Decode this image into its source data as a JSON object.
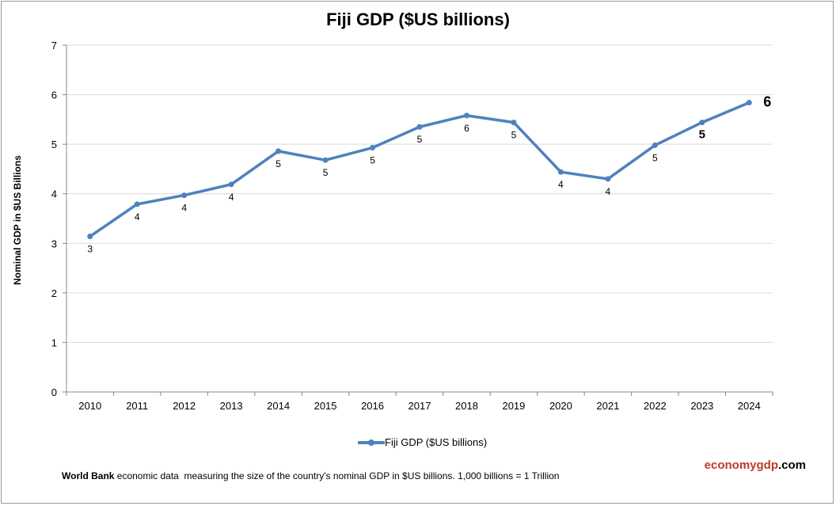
{
  "chart_data": {
    "type": "line",
    "title": "Fiji GDP ($US billions)",
    "xlabel": "",
    "ylabel": "Nominal GDP in $US  Billions",
    "ylim": [
      0,
      7
    ],
    "yticks": [
      "0",
      "1",
      "2",
      "3",
      "4",
      "5",
      "6",
      "7"
    ],
    "grid": true,
    "legend_position": "bottom",
    "categories": [
      "2010",
      "2011",
      "2012",
      "2013",
      "2014",
      "2015",
      "2016",
      "2017",
      "2018",
      "2019",
      "2020",
      "2021",
      "2022",
      "2023",
      "2024"
    ],
    "series": [
      {
        "name": "Fiji GDP ($US billions)",
        "color": "#4f81bd",
        "values": [
          3.14,
          3.79,
          3.97,
          4.19,
          4.86,
          4.68,
          4.93,
          5.35,
          5.58,
          5.44,
          4.44,
          4.3,
          4.98,
          5.44,
          5.84
        ],
        "data_labels": [
          "3",
          "4",
          "4",
          "4",
          "5",
          "5",
          "5",
          "5",
          "6",
          "5",
          "4",
          "4",
          "5",
          "5",
          "6"
        ]
      }
    ]
  },
  "footer": {
    "source_bold": "World Bank",
    "text": " economic data  measuring the size of the country's nominal GDP in $US billions. 1,000 billions = 1 Trillion"
  },
  "brand": {
    "part1": "economygdp",
    "part2": ".com",
    "color1": "#c0392b",
    "color2": "#000000"
  }
}
